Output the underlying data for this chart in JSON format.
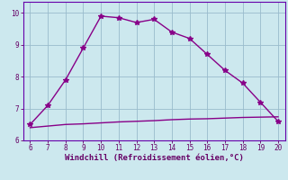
{
  "xlabel": "Windchill (Refroidissement éolien,°C)",
  "x": [
    6,
    7,
    8,
    9,
    10,
    11,
    12,
    13,
    14,
    15,
    16,
    17,
    18,
    19,
    20
  ],
  "y_upper": [
    6.5,
    7.1,
    7.9,
    8.9,
    9.9,
    9.85,
    9.7,
    9.8,
    9.4,
    9.2,
    8.7,
    8.2,
    7.8,
    7.2,
    6.6
  ],
  "y_lower": [
    6.4,
    6.45,
    6.5,
    6.52,
    6.55,
    6.58,
    6.6,
    6.62,
    6.65,
    6.67,
    6.68,
    6.7,
    6.72,
    6.73,
    6.74
  ],
  "line_color": "#880088",
  "bg_color": "#cce8ee",
  "grid_color": "#99bbcc",
  "tick_color": "#660066",
  "label_color": "#660066",
  "spine_color": "#6600aa",
  "xlim": [
    5.6,
    20.4
  ],
  "ylim": [
    6.0,
    10.35
  ],
  "xticks": [
    6,
    7,
    8,
    9,
    10,
    11,
    12,
    13,
    14,
    15,
    16,
    17,
    18,
    19,
    20
  ],
  "yticks": [
    6,
    7,
    8,
    9,
    10
  ],
  "marker": "*",
  "markersize": 4,
  "linewidth": 1.0,
  "tick_fontsize": 5.5,
  "label_fontsize": 6.5
}
